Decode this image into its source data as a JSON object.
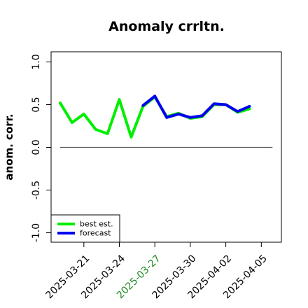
{
  "chart_data": {
    "type": "line",
    "title": "Anomaly crrltn.",
    "xlabel": "",
    "ylabel": "anom. corr.",
    "ylim": [
      -1.0,
      1.0
    ],
    "y_ticks": [
      "-1.0",
      "-0.5",
      "0.0",
      "0.5",
      "1.0"
    ],
    "x": [
      "2025-03-19",
      "2025-03-20",
      "2025-03-21",
      "2025-03-22",
      "2025-03-23",
      "2025-03-24",
      "2025-03-25",
      "2025-03-26",
      "2025-03-27",
      "2025-03-28",
      "2025-03-29",
      "2025-03-30",
      "2025-03-31",
      "2025-04-01",
      "2025-04-02",
      "2025-04-03",
      "2025-04-04",
      "2025-04-05"
    ],
    "x_tick_labels": [
      "2025-03-21",
      "2025-03-24",
      "2025-03-27",
      "2025-03-30",
      "2025-04-02",
      "2025-04-05"
    ],
    "highlighted_tick": "2025-03-27",
    "reference_line": 0.0,
    "legend_position": "bottom-left",
    "series": [
      {
        "name": "best est.",
        "color": "#00ee00",
        "values": [
          0.52,
          0.29,
          0.39,
          0.21,
          0.16,
          0.56,
          0.12,
          0.48,
          0.59,
          0.36,
          0.4,
          0.34,
          0.36,
          0.5,
          0.5,
          0.41,
          0.45,
          null
        ]
      },
      {
        "name": "forecast",
        "color": "#0000ee",
        "values": [
          null,
          null,
          null,
          null,
          null,
          null,
          null,
          0.49,
          0.6,
          0.35,
          0.39,
          0.35,
          0.37,
          0.51,
          0.5,
          0.42,
          0.48,
          null
        ]
      }
    ],
    "colors": {
      "highlight_tick": "#228b22",
      "axis": "#000000",
      "reference": "#555555"
    }
  }
}
